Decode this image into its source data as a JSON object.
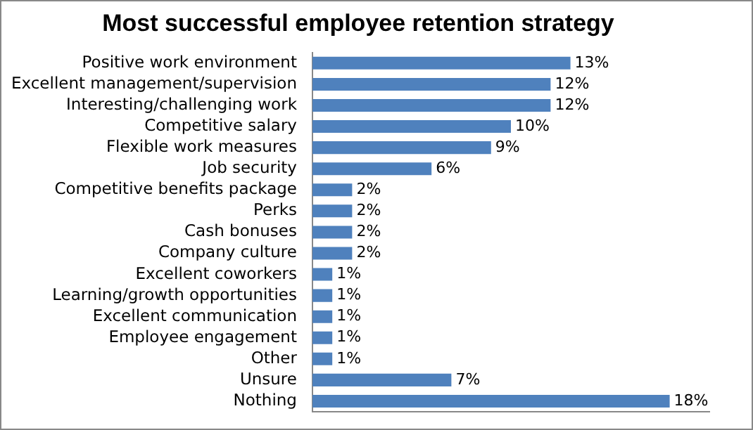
{
  "chart_data": {
    "type": "bar",
    "orientation": "horizontal",
    "title": "Most successful employee retention strategy",
    "categories": [
      "Positive work environment",
      "Excellent management/supervision",
      "Interesting/challenging work",
      "Competitive salary",
      "Flexible work measures",
      "Job security",
      "Competitive benefits package",
      "Perks",
      "Cash bonuses",
      "Company culture",
      "Excellent coworkers",
      "Learning/growth opportunities",
      "Excellent communication",
      "Employee engagement",
      "Other",
      "Unsure",
      "Nothing"
    ],
    "values": [
      13,
      12,
      12,
      10,
      9,
      6,
      2,
      2,
      2,
      2,
      1,
      1,
      1,
      1,
      1,
      7,
      18
    ],
    "value_labels": [
      "13%",
      "12%",
      "12%",
      "10%",
      "9%",
      "6%",
      "2%",
      "2%",
      "2%",
      "2%",
      "1%",
      "1%",
      "1%",
      "1%",
      "1%",
      "7%",
      "18%"
    ],
    "color": "#4f81bd",
    "xlim": [
      0,
      20
    ],
    "tick_labels": "y",
    "grid": false,
    "legend": false
  }
}
